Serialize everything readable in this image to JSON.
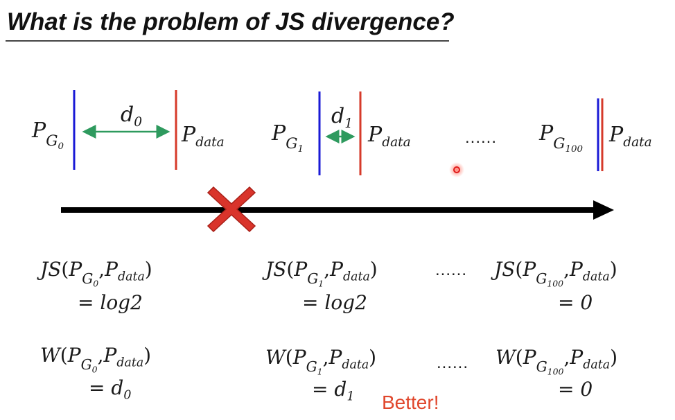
{
  "slide": {
    "title": "What is the problem of JS divergence?",
    "distances": {
      "d0": "d",
      "d0_sub": "0",
      "d1": "d",
      "d1_sub": "1"
    },
    "top_labels": {
      "pg": "P",
      "g": "G",
      "g0": "0",
      "g1": "1",
      "g100": "100",
      "p": "P",
      "data": "data",
      "ellipsis": "......"
    },
    "js_row": {
      "func": "JS",
      "open": "(",
      "close": ")",
      "comma": ",",
      "result_0": "= log2",
      "result_1": "= log2",
      "result_100": "= 0",
      "ellipsis": "......"
    },
    "w_row": {
      "func": "W",
      "result_0_eq": "= ",
      "result_0_d": "d",
      "result_0_sub": "0",
      "result_1_eq": "= ",
      "result_1_d": "d",
      "result_1_sub": "1",
      "result_100": "= 0",
      "ellipsis": "......"
    },
    "better": "Better!",
    "colors": {
      "pg_line": "#1a1ad6",
      "pdata_line": "#d63a2a",
      "arrow_green": "#2e9a5e",
      "timeline": "#000000",
      "cross": "#d9342b",
      "better": "#e0462b"
    }
  }
}
